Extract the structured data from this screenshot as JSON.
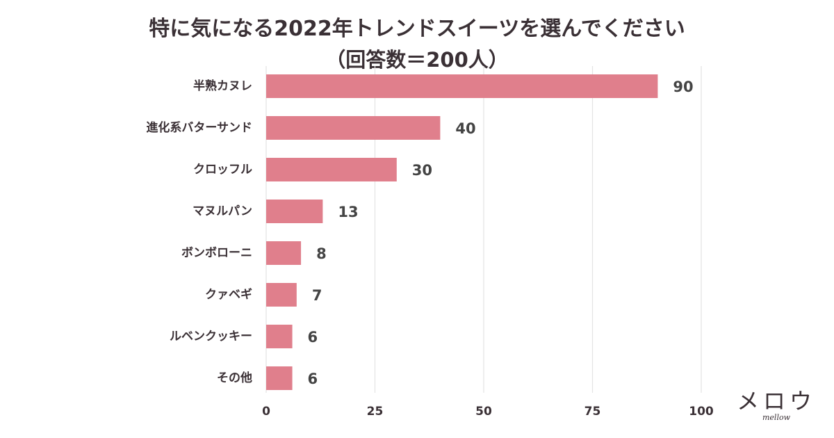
{
  "chart_data": {
    "type": "bar",
    "orientation": "horizontal",
    "title_line1": "特に気になる2022年トレンドスイーツを選んでください",
    "title_line2": "（回答数＝200人）",
    "categories": [
      "半熟カヌレ",
      "進化系バターサンド",
      "クロッフル",
      "マヌルパン",
      "ボンボローニ",
      "クァベギ",
      "ルベンクッキー",
      "その他"
    ],
    "values": [
      90,
      40,
      30,
      13,
      8,
      7,
      6,
      6
    ],
    "xlim": [
      0,
      100
    ],
    "xticks": [
      0,
      25,
      50,
      75,
      100
    ],
    "grid": true,
    "xlabel": "",
    "ylabel": "",
    "bar_color": "#e07f8c",
    "grid_color": "#e3e3e3"
  },
  "brand": {
    "logo_text": "メロウ",
    "logo_sub": "mellow"
  }
}
